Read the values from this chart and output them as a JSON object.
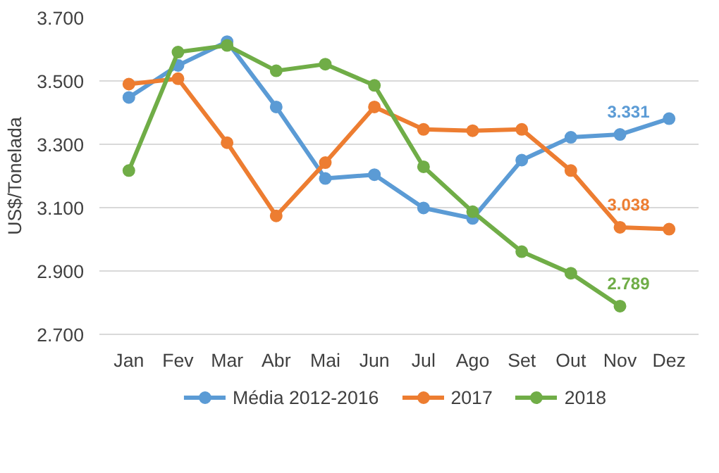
{
  "chart_data": {
    "type": "line",
    "ylabel": "US$/Tonelada",
    "categories": [
      "Jan",
      "Fev",
      "Mar",
      "Abr",
      "Mai",
      "Jun",
      "Jul",
      "Ago",
      "Set",
      "Out",
      "Nov",
      "Dez"
    ],
    "series": [
      {
        "name": "Média 2012-2016",
        "color": "#5b9bd5",
        "values": [
          3448,
          3549,
          3624,
          3418,
          3192,
          3204,
          3099,
          3066,
          3250,
          3322,
          3331,
          3381
        ],
        "value_labels": [
          null,
          null,
          null,
          null,
          null,
          null,
          null,
          null,
          null,
          null,
          "3.331",
          null
        ]
      },
      {
        "name": "2017",
        "color": "#ed7d31",
        "values": [
          3490,
          3507,
          3305,
          3074,
          3242,
          3418,
          3347,
          3343,
          3347,
          3217,
          3038,
          3032
        ],
        "value_labels": [
          null,
          null,
          null,
          null,
          null,
          null,
          null,
          null,
          null,
          null,
          "3.038",
          null
        ]
      },
      {
        "name": "2018",
        "color": "#70ad47",
        "values": [
          3217,
          3591,
          3612,
          3532,
          3553,
          3486,
          3229,
          3087,
          2961,
          2893,
          2789,
          null
        ],
        "value_labels": [
          null,
          null,
          null,
          null,
          null,
          null,
          null,
          null,
          null,
          null,
          "2.789",
          null
        ]
      }
    ],
    "ylim": [
      2700,
      3700
    ],
    "yticks": [
      {
        "value": 2700,
        "label": "2.700"
      },
      {
        "value": 2900,
        "label": "2.900"
      },
      {
        "value": 3100,
        "label": "3.100"
      },
      {
        "value": 3300,
        "label": "3.300"
      },
      {
        "value": 3500,
        "label": "3.500"
      },
      {
        "value": 3700,
        "label": "3.700"
      }
    ],
    "grid": "y",
    "legend": "bottom",
    "marker": "circle",
    "line_style": "solid"
  }
}
